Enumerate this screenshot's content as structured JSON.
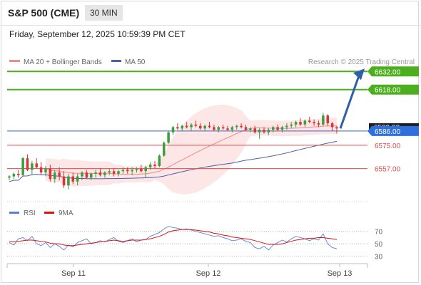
{
  "header": {
    "title": "S&P 500 (CME)",
    "interval": "30 MIN",
    "datetime": "Friday, September 12, 2025 10:59:39 PM CET"
  },
  "legend": {
    "ma20": "MA 20 + Bollinger Bands",
    "ma50": "MA 50",
    "credit": "Research © 2025 Trading Central"
  },
  "colors": {
    "green": "#4caf1e",
    "red": "#e34b4b",
    "blue": "#3a5fbd",
    "price_blue": "#2f6fe0",
    "ma20": "#f08b8b",
    "ma50": "#4b5ea8",
    "band": "#fbd5d5",
    "up": "#3f9b3f",
    "down": "#d93535",
    "arrow": "#2f5fa6"
  },
  "chart_data": [
    {
      "type": "candlestick",
      "title": "",
      "x_ticks": [
        "Sep 11",
        "Sep 12",
        "Sep 13"
      ],
      "ylim": [
        6537,
        6636
      ],
      "levels": [
        {
          "value": 6632.0,
          "label": "6632.00",
          "kind": "target"
        },
        {
          "value": 6618.0,
          "label": "6618.00",
          "kind": "target"
        },
        {
          "value": 6586.0,
          "label": "6586.00",
          "kind": "current"
        },
        {
          "value": 6575.0,
          "label": "6575.00",
          "kind": "support"
        },
        {
          "value": 6557.0,
          "label": "6557.00",
          "kind": "support"
        }
      ],
      "hidden_label": "6589.00",
      "forecast": {
        "from": 6588,
        "to": 6632
      },
      "candles": [
        [
          6550,
          6552,
          6548,
          6551
        ],
        [
          6551,
          6554,
          6549,
          6553
        ],
        [
          6553,
          6556,
          6550,
          6552
        ],
        [
          6552,
          6566,
          6551,
          6565
        ],
        [
          6565,
          6568,
          6555,
          6556
        ],
        [
          6556,
          6563,
          6552,
          6561
        ],
        [
          6561,
          6565,
          6557,
          6558
        ],
        [
          6558,
          6562,
          6552,
          6554
        ],
        [
          6554,
          6559,
          6551,
          6557
        ],
        [
          6557,
          6560,
          6547,
          6549
        ],
        [
          6549,
          6556,
          6546,
          6554
        ],
        [
          6554,
          6558,
          6548,
          6551
        ],
        [
          6551,
          6555,
          6542,
          6544
        ],
        [
          6544,
          6553,
          6541,
          6551
        ],
        [
          6551,
          6554,
          6545,
          6547
        ],
        [
          6547,
          6553,
          6544,
          6551
        ],
        [
          6551,
          6555,
          6548,
          6554
        ],
        [
          6554,
          6556,
          6549,
          6550
        ],
        [
          6550,
          6554,
          6548,
          6553
        ],
        [
          6553,
          6556,
          6550,
          6554
        ],
        [
          6554,
          6557,
          6551,
          6552
        ],
        [
          6552,
          6555,
          6550,
          6554
        ],
        [
          6554,
          6557,
          6552,
          6555
        ],
        [
          6555,
          6557,
          6551,
          6553
        ],
        [
          6553,
          6556,
          6551,
          6555
        ],
        [
          6555,
          6558,
          6553,
          6556
        ],
        [
          6556,
          6558,
          6553,
          6555
        ],
        [
          6555,
          6558,
          6552,
          6556
        ],
        [
          6556,
          6558,
          6554,
          6557
        ],
        [
          6557,
          6560,
          6554,
          6555
        ],
        [
          6555,
          6559,
          6550,
          6558
        ],
        [
          6558,
          6562,
          6556,
          6560
        ],
        [
          6560,
          6563,
          6557,
          6559
        ],
        [
          6559,
          6568,
          6558,
          6567
        ],
        [
          6567,
          6578,
          6566,
          6577
        ],
        [
          6577,
          6586,
          6576,
          6585
        ],
        [
          6585,
          6590,
          6583,
          6589
        ],
        [
          6589,
          6592,
          6587,
          6588
        ],
        [
          6588,
          6591,
          6586,
          6590
        ],
        [
          6590,
          6593,
          6588,
          6589
        ],
        [
          6589,
          6592,
          6586,
          6591
        ],
        [
          6591,
          6594,
          6589,
          6590
        ],
        [
          6590,
          6592,
          6587,
          6588
        ],
        [
          6588,
          6591,
          6586,
          6590
        ],
        [
          6590,
          6593,
          6588,
          6589
        ],
        [
          6589,
          6591,
          6586,
          6587
        ],
        [
          6587,
          6590,
          6585,
          6589
        ],
        [
          6589,
          6591,
          6587,
          6588
        ],
        [
          6588,
          6590,
          6586,
          6587
        ],
        [
          6587,
          6590,
          6585,
          6589
        ],
        [
          6589,
          6591,
          6587,
          6590
        ],
        [
          6590,
          6592,
          6588,
          6589
        ],
        [
          6589,
          6591,
          6586,
          6587
        ],
        [
          6587,
          6589,
          6585,
          6588
        ],
        [
          6588,
          6590,
          6584,
          6585
        ],
        [
          6585,
          6588,
          6580,
          6587
        ],
        [
          6587,
          6589,
          6584,
          6585
        ],
        [
          6585,
          6588,
          6583,
          6587
        ],
        [
          6587,
          6590,
          6585,
          6589
        ],
        [
          6589,
          6591,
          6586,
          6587
        ],
        [
          6587,
          6590,
          6585,
          6589
        ],
        [
          6589,
          6592,
          6587,
          6590
        ],
        [
          6590,
          6593,
          6588,
          6591
        ],
        [
          6591,
          6594,
          6589,
          6593
        ],
        [
          6593,
          6596,
          6590,
          6591
        ],
        [
          6591,
          6595,
          6589,
          6594
        ],
        [
          6594,
          6597,
          6592,
          6593
        ],
        [
          6593,
          6595,
          6590,
          6592
        ],
        [
          6592,
          6594,
          6589,
          6591
        ],
        [
          6591,
          6600,
          6590,
          6598
        ],
        [
          6598,
          6599,
          6590,
          6592
        ],
        [
          6592,
          6593,
          6586,
          6589
        ],
        [
          6589,
          6590,
          6584,
          6588
        ]
      ]
    },
    {
      "type": "line",
      "title": "",
      "legend": [
        "RSI",
        "9MA"
      ],
      "y_ticks": [
        70,
        50,
        30
      ],
      "ylim": [
        25,
        80
      ],
      "series": [
        {
          "name": "RSI",
          "values": [
            52,
            48,
            58,
            60,
            55,
            62,
            50,
            47,
            52,
            44,
            50,
            46,
            40,
            48,
            45,
            52,
            55,
            58,
            50,
            52,
            55,
            53,
            57,
            60,
            54,
            52,
            55,
            58,
            53,
            56,
            57,
            62,
            65,
            68,
            74,
            78,
            76,
            75,
            73,
            74,
            72,
            70,
            68,
            66,
            64,
            62,
            63,
            60,
            58,
            55,
            56,
            58,
            54,
            52,
            44,
            42,
            46,
            40,
            48,
            52,
            56,
            53,
            58,
            62,
            60,
            58,
            55,
            58,
            56,
            66,
            50,
            44,
            42
          ]
        },
        {
          "name": "9MA",
          "values": [
            54,
            53,
            54,
            55,
            56,
            56,
            55,
            54,
            53,
            51,
            50,
            50,
            48,
            47,
            47,
            48,
            49,
            50,
            51,
            52,
            53,
            54,
            55,
            56,
            55,
            54,
            55,
            56,
            56,
            56,
            57,
            58,
            60,
            62,
            65,
            69,
            71,
            72,
            73,
            73,
            73,
            72,
            71,
            70,
            69,
            67,
            66,
            64,
            63,
            61,
            60,
            59,
            58,
            57,
            55,
            53,
            51,
            49,
            49,
            49,
            50,
            52,
            54,
            56,
            57,
            58,
            59,
            59,
            60,
            60,
            59,
            58,
            57
          ]
        }
      ]
    }
  ]
}
